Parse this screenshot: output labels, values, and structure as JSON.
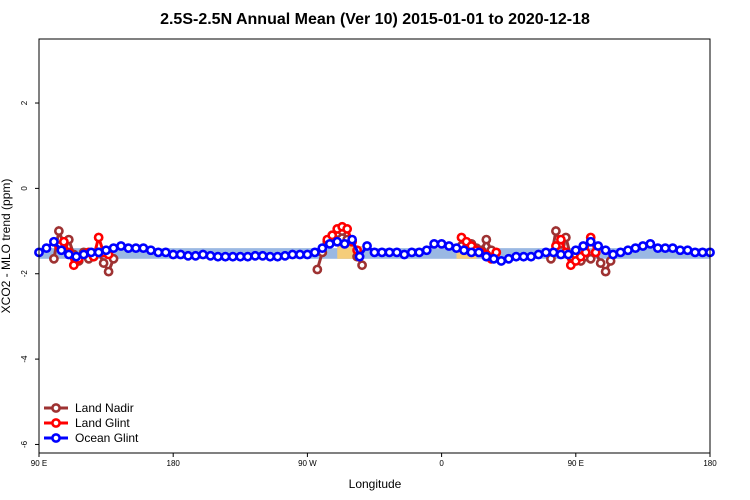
{
  "chart_data": {
    "type": "line",
    "title": "2.5S-2.5N Annual Mean (Ver 10)   2015-01-01 to 2020-12-18",
    "xlabel": "Longitude",
    "ylabel": "XCO2 - MLO trend (ppm)",
    "xlim": [
      -90,
      180
    ],
    "ylim": [
      -6.2,
      3.5
    ],
    "x_ticks": [
      {
        "value": -90,
        "label": "90 E"
      },
      {
        "value": -36,
        "label": "180"
      },
      {
        "value": 18,
        "label": "90 W"
      },
      {
        "value": 72,
        "label": "0"
      },
      {
        "value": 126,
        "label": "90 E"
      },
      {
        "value": 180,
        "label": "180"
      }
    ],
    "y_ticks": [
      {
        "value": -6,
        "label": "-6"
      },
      {
        "value": -4,
        "label": "-4"
      },
      {
        "value": -2,
        "label": "-2"
      },
      {
        "value": 0,
        "label": "0"
      },
      {
        "value": 2,
        "label": "2"
      }
    ],
    "grid": false,
    "legend_position": "bottom-left",
    "bands": [
      {
        "color": "#9ab8e3",
        "x_start": -90,
        "x_end": 180,
        "y_low": -1.65,
        "y_high": -1.4
      },
      {
        "color": "#f5cd7a",
        "x_start": 30,
        "x_end": 40,
        "y_low": -1.65,
        "y_high": -1.35
      },
      {
        "color": "#f5cd7a",
        "x_start": 78,
        "x_end": 86,
        "y_low": -1.65,
        "y_high": -1.4
      }
    ],
    "series": [
      {
        "name": "Land Nadir",
        "color": "#9e3232",
        "segments": [
          {
            "x": [
              -84,
              -82,
              -80,
              -78,
              -76,
              -74,
              -72,
              -70,
              -68,
              -66,
              -64,
              -62,
              -60
            ],
            "y": [
              -1.65,
              -1.0,
              -1.3,
              -1.2,
              -1.55,
              -1.7,
              -1.5,
              -1.65,
              -1.6,
              -1.5,
              -1.75,
              -1.95,
              -1.65
            ]
          },
          {
            "x": [
              22,
              24,
              26,
              28,
              30,
              32,
              34
            ],
            "y": [
              -1.9,
              -1.5,
              -1.25,
              -1.1,
              -1.05,
              -1.0,
              -1.2
            ]
          },
          {
            "x": [
              38,
              40
            ],
            "y": [
              -1.6,
              -1.8
            ]
          },
          {
            "x": [
              80,
              82,
              84,
              86,
              88,
              90,
              92
            ],
            "y": [
              -1.35,
              -1.4,
              -1.3,
              -1.4,
              -1.45,
              -1.2,
              -1.45
            ]
          },
          {
            "x": [
              116,
              118,
              120,
              122,
              124,
              126,
              128,
              130,
              132,
              134,
              136,
              138,
              140
            ],
            "y": [
              -1.65,
              -1.0,
              -1.3,
              -1.15,
              -1.6,
              -1.55,
              -1.7,
              -1.6,
              -1.65,
              -1.5,
              -1.75,
              -1.95,
              -1.7
            ]
          }
        ]
      },
      {
        "name": "Land Glint",
        "color": "#ff0000",
        "segments": [
          {
            "x": [
              -82,
              -80,
              -78,
              -76,
              -74,
              -72,
              -70,
              -68,
              -66,
              -64,
              -62
            ],
            "y": [
              -1.35,
              -1.25,
              -1.5,
              -1.8,
              -1.65,
              -1.55,
              -1.5,
              -1.6,
              -1.15,
              -1.5,
              -1.55
            ]
          },
          {
            "x": [
              26,
              28,
              30,
              32,
              34,
              36,
              38
            ],
            "y": [
              -1.2,
              -1.1,
              -0.95,
              -0.9,
              -0.95,
              -1.25,
              -1.45
            ]
          },
          {
            "x": [
              80,
              82,
              84,
              86,
              88,
              90,
              92,
              94
            ],
            "y": [
              -1.15,
              -1.25,
              -1.35,
              -1.45,
              -1.5,
              -1.55,
              -1.65,
              -1.5
            ]
          },
          {
            "x": [
              118,
              120,
              122,
              124,
              126,
              128,
              130,
              132,
              134
            ],
            "y": [
              -1.35,
              -1.2,
              -1.5,
              -1.8,
              -1.7,
              -1.6,
              -1.5,
              -1.15,
              -1.5
            ]
          }
        ]
      },
      {
        "name": "Ocean Glint",
        "color": "#0000ff",
        "segments": [
          {
            "x": [
              -90,
              -87,
              -84,
              -81,
              -78,
              -75,
              -72,
              -69,
              -66,
              -63,
              -60,
              -57,
              -54,
              -51,
              -48,
              -45,
              -42,
              -39,
              -36,
              -33,
              -30,
              -27,
              -24,
              -21,
              -18,
              -15,
              -12,
              -9,
              -6,
              -3,
              0,
              3,
              6,
              9,
              12,
              15,
              18,
              21
            ],
            "y": [
              -1.5,
              -1.4,
              -1.25,
              -1.45,
              -1.55,
              -1.6,
              -1.55,
              -1.5,
              -1.5,
              -1.45,
              -1.4,
              -1.35,
              -1.4,
              -1.4,
              -1.4,
              -1.45,
              -1.5,
              -1.5,
              -1.55,
              -1.55,
              -1.58,
              -1.58,
              -1.55,
              -1.58,
              -1.6,
              -1.6,
              -1.6,
              -1.6,
              -1.6,
              -1.58,
              -1.58,
              -1.6,
              -1.6,
              -1.58,
              -1.55,
              -1.55,
              -1.55,
              -1.5
            ]
          },
          {
            "x": [
              24,
              27,
              30,
              33,
              36,
              39,
              42,
              45,
              48,
              51,
              54,
              57,
              60,
              63,
              66,
              69,
              72,
              75,
              78,
              81,
              84,
              87,
              90,
              93,
              96,
              99,
              102,
              105,
              108,
              111,
              114,
              117,
              120,
              123,
              126,
              129,
              132,
              135,
              138,
              141,
              144,
              147,
              150,
              153,
              156,
              159,
              162,
              165,
              168,
              171,
              174,
              177,
              180
            ],
            "y": [
              -1.4,
              -1.3,
              -1.25,
              -1.3,
              -1.2,
              -1.6,
              -1.35,
              -1.5,
              -1.5,
              -1.5,
              -1.5,
              -1.55,
              -1.5,
              -1.5,
              -1.45,
              -1.3,
              -1.3,
              -1.35,
              -1.4,
              -1.45,
              -1.5,
              -1.5,
              -1.6,
              -1.65,
              -1.7,
              -1.65,
              -1.6,
              -1.6,
              -1.6,
              -1.55,
              -1.5,
              -1.5,
              -1.55,
              -1.55,
              -1.45,
              -1.35,
              -1.25,
              -1.35,
              -1.45,
              -1.55,
              -1.5,
              -1.45,
              -1.4,
              -1.35,
              -1.3,
              -1.4,
              -1.4,
              -1.4,
              -1.45,
              -1.45,
              -1.5,
              -1.5,
              -1.5
            ]
          }
        ]
      }
    ]
  }
}
